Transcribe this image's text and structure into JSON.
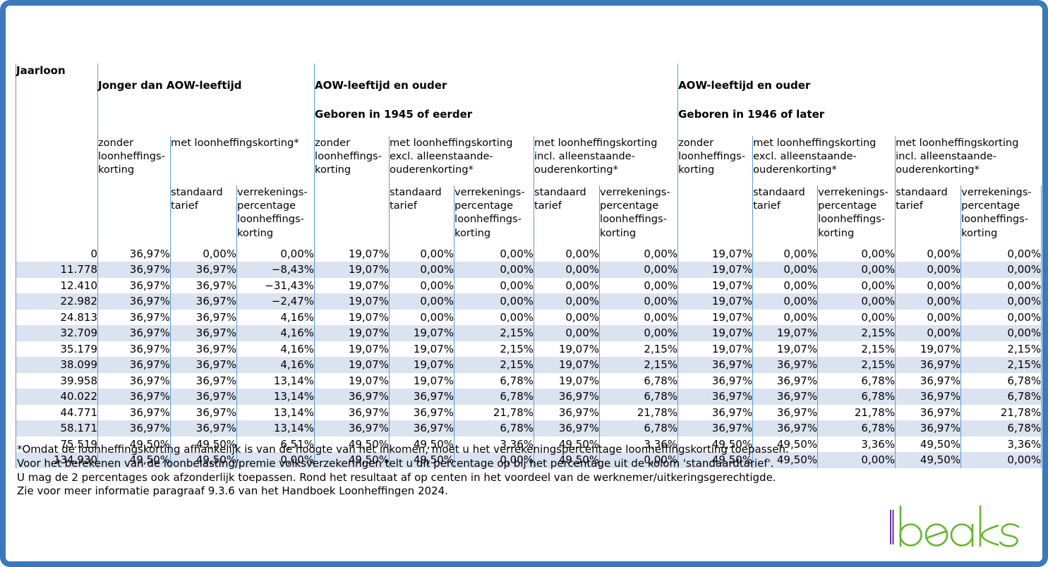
{
  "table": {
    "jaarloon_label": "Jaarloon",
    "groups": [
      {
        "title": "Jonger dan AOW-leeftijd",
        "subtitle": ""
      },
      {
        "title": "AOW-leeftijd en ouder",
        "subtitle": "Geboren in 1945 of eerder"
      },
      {
        "title": "AOW-leeftijd en ouder",
        "subtitle": "Geboren in 1946 of later"
      }
    ],
    "sub": {
      "zonder": "zonder\nloonheffings-\nkorting",
      "met": "met loonheffingskorting*",
      "met_excl": "met loonheffingskorting\nexcl. alleenstaande-\nouderenkorting*",
      "met_incl": "met loonheffingskorting\nincl. alleenstaande-\nouderenkorting*",
      "standaard": "standaard\ntarief",
      "verrekenings": "verrekenings-\npercentage\nloonheffings-\nkorting"
    },
    "rows": [
      {
        "jaarloon": "0",
        "values": [
          "36,97%",
          "0,00%",
          "0,00%",
          "19,07%",
          "0,00%",
          "0,00%",
          "0,00%",
          "0,00%",
          "19,07%",
          "0,00%",
          "0,00%",
          "0,00%",
          "0,00%"
        ]
      },
      {
        "jaarloon": "11.778",
        "values": [
          "36,97%",
          "36,97%",
          "−8,43%",
          "19,07%",
          "0,00%",
          "0,00%",
          "0,00%",
          "0,00%",
          "19,07%",
          "0,00%",
          "0,00%",
          "0,00%",
          "0,00%"
        ]
      },
      {
        "jaarloon": "12.410",
        "values": [
          "36,97%",
          "36,97%",
          "−31,43%",
          "19,07%",
          "0,00%",
          "0,00%",
          "0,00%",
          "0,00%",
          "19,07%",
          "0,00%",
          "0,00%",
          "0,00%",
          "0,00%"
        ]
      },
      {
        "jaarloon": "22.982",
        "values": [
          "36,97%",
          "36,97%",
          "−2,47%",
          "19,07%",
          "0,00%",
          "0,00%",
          "0,00%",
          "0,00%",
          "19,07%",
          "0,00%",
          "0,00%",
          "0,00%",
          "0,00%"
        ]
      },
      {
        "jaarloon": "24.813",
        "values": [
          "36,97%",
          "36,97%",
          "4,16%",
          "19,07%",
          "0,00%",
          "0,00%",
          "0,00%",
          "0,00%",
          "19,07%",
          "0,00%",
          "0,00%",
          "0,00%",
          "0,00%"
        ]
      },
      {
        "jaarloon": "32.709",
        "values": [
          "36,97%",
          "36,97%",
          "4,16%",
          "19,07%",
          "19,07%",
          "2,15%",
          "0,00%",
          "0,00%",
          "19,07%",
          "19,07%",
          "2,15%",
          "0,00%",
          "0,00%"
        ]
      },
      {
        "jaarloon": "35.179",
        "values": [
          "36,97%",
          "36,97%",
          "4,16%",
          "19,07%",
          "19,07%",
          "2,15%",
          "19,07%",
          "2,15%",
          "19,07%",
          "19,07%",
          "2,15%",
          "19,07%",
          "2,15%"
        ]
      },
      {
        "jaarloon": "38.099",
        "values": [
          "36,97%",
          "36,97%",
          "4,16%",
          "19,07%",
          "19,07%",
          "2,15%",
          "19,07%",
          "2,15%",
          "36,97%",
          "36,97%",
          "2,15%",
          "36,97%",
          "2,15%"
        ]
      },
      {
        "jaarloon": "39.958",
        "values": [
          "36,97%",
          "36,97%",
          "13,14%",
          "19,07%",
          "19,07%",
          "6,78%",
          "19,07%",
          "6,78%",
          "36,97%",
          "36,97%",
          "6,78%",
          "36,97%",
          "6,78%"
        ]
      },
      {
        "jaarloon": "40.022",
        "values": [
          "36,97%",
          "36,97%",
          "13,14%",
          "36,97%",
          "36,97%",
          "6,78%",
          "36,97%",
          "6,78%",
          "36,97%",
          "36,97%",
          "6,78%",
          "36,97%",
          "6,78%"
        ]
      },
      {
        "jaarloon": "44.771",
        "values": [
          "36,97%",
          "36,97%",
          "13,14%",
          "36,97%",
          "36,97%",
          "21,78%",
          "36,97%",
          "21,78%",
          "36,97%",
          "36,97%",
          "21,78%",
          "36,97%",
          "21,78%"
        ]
      },
      {
        "jaarloon": "58.171",
        "values": [
          "36,97%",
          "36,97%",
          "13,14%",
          "36,97%",
          "36,97%",
          "6,78%",
          "36,97%",
          "6,78%",
          "36,97%",
          "36,97%",
          "6,78%",
          "36,97%",
          "6,78%"
        ]
      },
      {
        "jaarloon": "75.519",
        "values": [
          "49,50%",
          "49,50%",
          "6,51%",
          "49,50%",
          "49,50%",
          "3,36%",
          "49,50%",
          "3,36%",
          "49,50%",
          "49,50%",
          "3,36%",
          "49,50%",
          "3,36%"
        ]
      },
      {
        "jaarloon": "134.930",
        "values": [
          "49,50%",
          "49,50%",
          "0,00%",
          "49,50%",
          "49,50%",
          "0,00%",
          "49,50%",
          "0,00%",
          "49,50%",
          "49,50%",
          "0,00%",
          "49,50%",
          "0,00%"
        ]
      }
    ]
  },
  "footnote": {
    "lines": [
      "*Omdat de loonheffingskorting afhankelijk is van de hoogte van het inkomen, moet u het verrekeningspercentage loonheffingskorting toepassen.",
      "Voor het berekenen van de loonbelasting/premie volksverzekeringen telt u dit percentage op bij het percentage uit de kolom 'standaardtarief'.",
      "U mag de 2 percentages ook afzonderlijk toepassen. Rond het resultaat af op centen in het voordeel van de werknemer/uitkeringsgerechtigde.",
      "Zie voor meer informatie paragraaf 9.3.6 van het Handboek Loonheffingen 2024."
    ]
  },
  "logo": {
    "text": "beaks"
  },
  "colors": {
    "page_border": "#3b78bc",
    "grid_line": "#5b9bd5",
    "row_stripe": "#dbe3f1",
    "logo_green": "#64b62e",
    "logo_purple": "#7030a0"
  }
}
